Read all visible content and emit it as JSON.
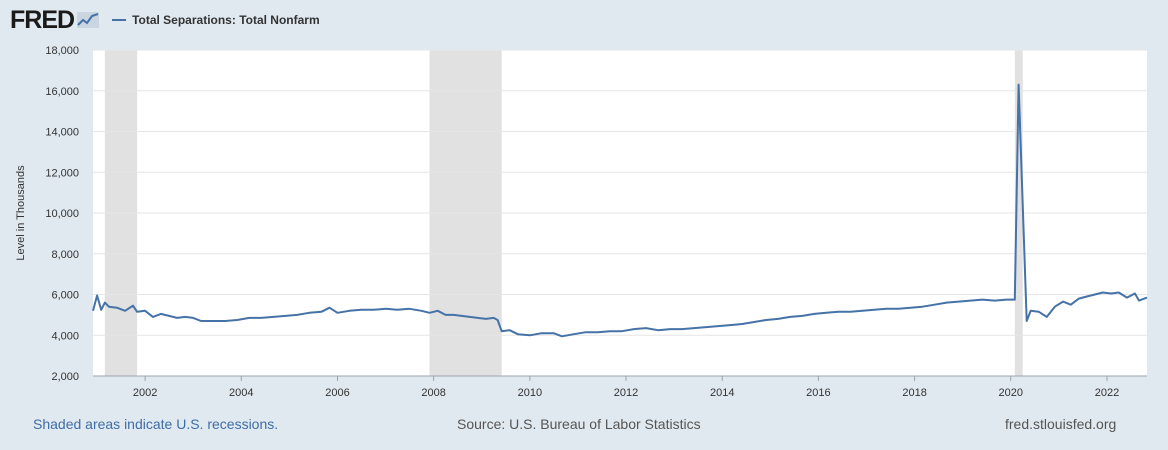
{
  "header": {
    "logo_text": "FRED",
    "legend_label": "Total Separations: Total Nonfarm"
  },
  "colors": {
    "background": "#e1e9f0",
    "plot_background": "#ffffff",
    "series_line": "#4572a7",
    "recession_shade": "#e1e1e1",
    "gridline": "#e6e6e6",
    "link": "#3e6da6"
  },
  "icons": {
    "logo_chart": "line-chart-icon"
  },
  "footer": {
    "recession_note": "Shaded areas indicate U.S. recessions.",
    "source": "Source: U.S. Bureau of Labor Statistics",
    "site": "fred.stlouisfed.org"
  },
  "chart_data": {
    "type": "line",
    "title": "",
    "xlabel": "",
    "ylabel": "Level in Thousands",
    "ylim": [
      2000,
      18000
    ],
    "xlim": [
      "2000-12-01",
      "2022-11-01"
    ],
    "y_ticks": [
      2000,
      4000,
      6000,
      8000,
      10000,
      12000,
      14000,
      16000,
      18000
    ],
    "y_tick_labels": [
      "2,000",
      "4,000",
      "6,000",
      "8,000",
      "10,000",
      "12,000",
      "14,000",
      "16,000",
      "18,000"
    ],
    "x_ticks": [
      "2002-01-01",
      "2004-01-01",
      "2006-01-01",
      "2008-01-01",
      "2010-01-01",
      "2012-01-01",
      "2014-01-01",
      "2016-01-01",
      "2018-01-01",
      "2020-01-01",
      "2022-01-01"
    ],
    "x_tick_labels": [
      "2002",
      "2004",
      "2006",
      "2008",
      "2010",
      "2012",
      "2014",
      "2016",
      "2018",
      "2020",
      "2022"
    ],
    "grid": true,
    "recessions": [
      [
        "2001-03-01",
        "2001-11-01"
      ],
      [
        "2007-12-01",
        "2009-06-01"
      ],
      [
        "2020-02-01",
        "2020-04-01"
      ]
    ],
    "series": [
      {
        "name": "Total Separations: Total Nonfarm",
        "points": [
          [
            "2000-12-01",
            5200
          ],
          [
            "2001-01-01",
            5950
          ],
          [
            "2001-02-01",
            5250
          ],
          [
            "2001-03-01",
            5600
          ],
          [
            "2001-04-01",
            5400
          ],
          [
            "2001-06-01",
            5350
          ],
          [
            "2001-08-01",
            5200
          ],
          [
            "2001-10-01",
            5450
          ],
          [
            "2001-11-01",
            5150
          ],
          [
            "2002-01-01",
            5200
          ],
          [
            "2002-03-01",
            4900
          ],
          [
            "2002-05-01",
            5050
          ],
          [
            "2002-07-01",
            4950
          ],
          [
            "2002-09-01",
            4850
          ],
          [
            "2002-11-01",
            4900
          ],
          [
            "2003-01-01",
            4850
          ],
          [
            "2003-03-01",
            4700
          ],
          [
            "2003-06-01",
            4700
          ],
          [
            "2003-09-01",
            4700
          ],
          [
            "2003-12-01",
            4750
          ],
          [
            "2004-03-01",
            4850
          ],
          [
            "2004-06-01",
            4850
          ],
          [
            "2004-09-01",
            4900
          ],
          [
            "2004-12-01",
            4950
          ],
          [
            "2005-03-01",
            5000
          ],
          [
            "2005-06-01",
            5100
          ],
          [
            "2005-09-01",
            5150
          ],
          [
            "2005-11-01",
            5350
          ],
          [
            "2006-01-01",
            5100
          ],
          [
            "2006-04-01",
            5200
          ],
          [
            "2006-07-01",
            5250
          ],
          [
            "2006-10-01",
            5250
          ],
          [
            "2007-01-01",
            5300
          ],
          [
            "2007-04-01",
            5250
          ],
          [
            "2007-07-01",
            5300
          ],
          [
            "2007-10-01",
            5200
          ],
          [
            "2007-12-01",
            5100
          ],
          [
            "2008-02-01",
            5200
          ],
          [
            "2008-04-01",
            5000
          ],
          [
            "2008-06-01",
            5000
          ],
          [
            "2008-08-01",
            4950
          ],
          [
            "2008-10-01",
            4900
          ],
          [
            "2008-12-01",
            4850
          ],
          [
            "2009-02-01",
            4800
          ],
          [
            "2009-04-01",
            4850
          ],
          [
            "2009-05-01",
            4750
          ],
          [
            "2009-06-01",
            4200
          ],
          [
            "2009-08-01",
            4250
          ],
          [
            "2009-10-01",
            4050
          ],
          [
            "2010-01-01",
            4000
          ],
          [
            "2010-04-01",
            4100
          ],
          [
            "2010-07-01",
            4100
          ],
          [
            "2010-09-01",
            3950
          ],
          [
            "2010-12-01",
            4050
          ],
          [
            "2011-03-01",
            4150
          ],
          [
            "2011-06-01",
            4150
          ],
          [
            "2011-09-01",
            4200
          ],
          [
            "2011-12-01",
            4200
          ],
          [
            "2012-03-01",
            4300
          ],
          [
            "2012-06-01",
            4350
          ],
          [
            "2012-09-01",
            4250
          ],
          [
            "2012-12-01",
            4300
          ],
          [
            "2013-03-01",
            4300
          ],
          [
            "2013-06-01",
            4350
          ],
          [
            "2013-09-01",
            4400
          ],
          [
            "2013-12-01",
            4450
          ],
          [
            "2014-03-01",
            4500
          ],
          [
            "2014-06-01",
            4550
          ],
          [
            "2014-09-01",
            4650
          ],
          [
            "2014-12-01",
            4750
          ],
          [
            "2015-03-01",
            4800
          ],
          [
            "2015-06-01",
            4900
          ],
          [
            "2015-09-01",
            4950
          ],
          [
            "2015-12-01",
            5050
          ],
          [
            "2016-03-01",
            5100
          ],
          [
            "2016-06-01",
            5150
          ],
          [
            "2016-09-01",
            5150
          ],
          [
            "2016-12-01",
            5200
          ],
          [
            "2017-03-01",
            5250
          ],
          [
            "2017-06-01",
            5300
          ],
          [
            "2017-09-01",
            5300
          ],
          [
            "2017-12-01",
            5350
          ],
          [
            "2018-03-01",
            5400
          ],
          [
            "2018-06-01",
            5500
          ],
          [
            "2018-09-01",
            5600
          ],
          [
            "2018-12-01",
            5650
          ],
          [
            "2019-03-01",
            5700
          ],
          [
            "2019-06-01",
            5750
          ],
          [
            "2019-09-01",
            5700
          ],
          [
            "2019-12-01",
            5750
          ],
          [
            "2020-02-01",
            5750
          ],
          [
            "2020-03-01",
            16300
          ],
          [
            "2020-05-01",
            4700
          ],
          [
            "2020-06-01",
            5200
          ],
          [
            "2020-08-01",
            5150
          ],
          [
            "2020-10-01",
            4900
          ],
          [
            "2020-12-01",
            5400
          ],
          [
            "2021-02-01",
            5650
          ],
          [
            "2021-04-01",
            5500
          ],
          [
            "2021-06-01",
            5800
          ],
          [
            "2021-08-01",
            5900
          ],
          [
            "2021-10-01",
            6000
          ],
          [
            "2021-12-01",
            6100
          ],
          [
            "2022-02-01",
            6050
          ],
          [
            "2022-04-01",
            6100
          ],
          [
            "2022-06-01",
            5850
          ],
          [
            "2022-08-01",
            6050
          ],
          [
            "2022-09-01",
            5700
          ],
          [
            "2022-11-01",
            5850
          ]
        ]
      }
    ]
  }
}
